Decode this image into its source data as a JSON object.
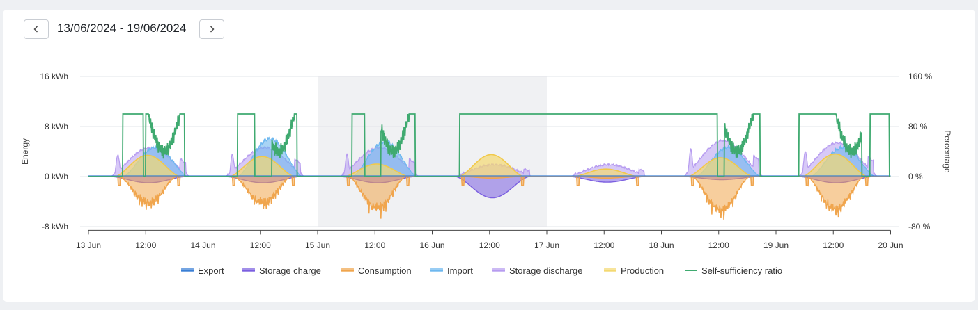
{
  "header": {
    "date_range": "13/06/2024 - 19/06/2024",
    "prev_icon": "chevron-left-icon",
    "next_icon": "chevron-right-icon"
  },
  "chart_data": {
    "type": "area",
    "title": "",
    "x_ticks": [
      "13 Jun",
      "12:00",
      "14 Jun",
      "12:00",
      "15 Jun",
      "12:00",
      "16 Jun",
      "12:00",
      "17 Jun",
      "12:00",
      "18 Jun",
      "12:00",
      "19 Jun",
      "12:00",
      "20 Jun"
    ],
    "y_left": {
      "label": "Energy",
      "ticks": [
        "16 kWh",
        "8 kWh",
        "0 kWh",
        "-8 kWh"
      ],
      "range": [
        -8,
        16
      ]
    },
    "y_right": {
      "label": "Percentage",
      "ticks": [
        "160 %",
        "80 %",
        "0 %",
        "-80 %"
      ],
      "range": [
        -80,
        160
      ]
    },
    "highlight_range_days": [
      2,
      4
    ],
    "grid": true,
    "legend_position": "bottom",
    "series": [
      {
        "name": "Export",
        "color": "#3a7fd5",
        "peak_kwh": 0
      },
      {
        "name": "Storage charge",
        "color": "#7b5fe0",
        "daily_peak_kwh": [
          -1.0,
          -1.0,
          -1.0,
          -3.4,
          -0.9,
          -0.5,
          -1.0
        ]
      },
      {
        "name": "Consumption",
        "color": "#f0a54d",
        "daily_peak_kwh": [
          -4.8,
          -4.8,
          -5.8,
          -0.3,
          -0.3,
          -6.3,
          -6.0
        ]
      },
      {
        "name": "Import",
        "color": "#6eb8ef",
        "daily_peak_kwh": [
          4.4,
          5.8,
          5.3,
          0,
          0,
          4.4,
          4.4
        ]
      },
      {
        "name": "Storage discharge",
        "color": "#b79cf0",
        "daily_peak_kwh": [
          5.3,
          5.3,
          5.3,
          2.1,
          2.1,
          6.6,
          6.2
        ]
      },
      {
        "name": "Production",
        "color": "#f4d971",
        "daily_peak_kwh": [
          3.4,
          3.2,
          2.0,
          3.5,
          1.2,
          3.0,
          3.6
        ]
      },
      {
        "name": "Self-sufficiency ratio",
        "color": "#3faa70",
        "max_percent": 100
      }
    ]
  }
}
